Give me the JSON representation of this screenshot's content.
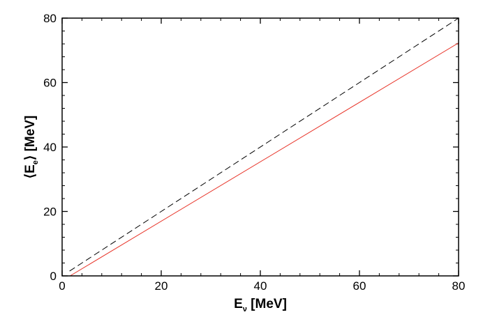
{
  "chart_data": {
    "type": "line",
    "title": "",
    "xlabel": "E",
    "xlabel_sub": "ν",
    "xlabel_unit": " [MeV]",
    "ylabel_open": "⟨E",
    "ylabel_sub": "e",
    "ylabel_close": "⟩ [MeV]",
    "xlim": [
      0,
      80
    ],
    "ylim": [
      0,
      80
    ],
    "xticks": [
      0,
      20,
      40,
      60,
      80
    ],
    "yticks": [
      0,
      20,
      40,
      60,
      80
    ],
    "x_minor_step": 4,
    "y_minor_step": 4,
    "grid": false,
    "legend": false,
    "series": [
      {
        "style": "dashed",
        "color": "#000000",
        "x": [
          1.5,
          80
        ],
        "y": [
          1.5,
          80
        ]
      },
      {
        "style": "solid",
        "color": "#e8352a",
        "x": [
          1.6,
          80
        ],
        "y": [
          0,
          72.3
        ]
      }
    ]
  }
}
